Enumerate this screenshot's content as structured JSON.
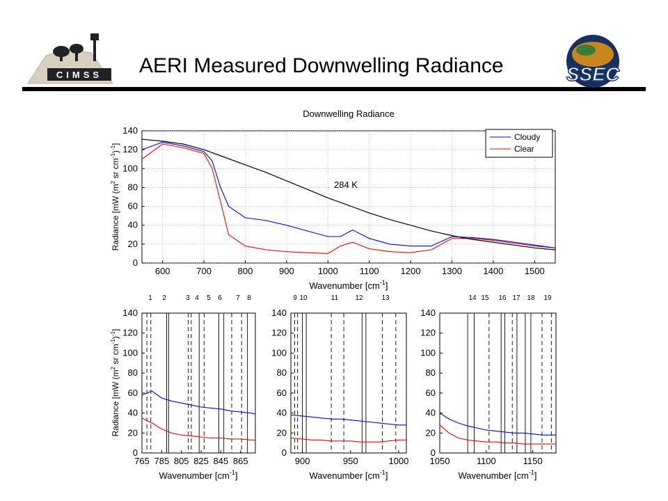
{
  "slide": {
    "title": "AERI Measured Downwelling Radiance",
    "logos": {
      "left": "CIMSS",
      "right": "SSEC"
    }
  },
  "chart_data": [
    {
      "type": "line",
      "title": "Downwelling Radiance",
      "xlabel": "Wavenumber [cm-1]",
      "ylabel": "Radiance [mW (m2 sr cm-1)-1]",
      "xlim": [
        550,
        1550
      ],
      "ylim": [
        0,
        140
      ],
      "xticks": [
        600,
        700,
        800,
        900,
        1000,
        1100,
        1200,
        1300,
        1400,
        1500
      ],
      "yticks": [
        0,
        20,
        40,
        60,
        80,
        100,
        120,
        140
      ],
      "grid": true,
      "legend_position": "top-right",
      "annotation": "284 K",
      "series": [
        {
          "name": "Cloudy",
          "color": "#0000ff",
          "x": [
            550,
            600,
            650,
            700,
            720,
            740,
            760,
            800,
            850,
            900,
            950,
            1000,
            1030,
            1060,
            1100,
            1150,
            1200,
            1250,
            1300,
            1350,
            1400,
            1450,
            1500,
            1550
          ],
          "y": [
            120,
            128,
            124,
            118,
            108,
            80,
            60,
            48,
            45,
            40,
            34,
            28,
            28,
            35,
            26,
            20,
            18,
            18,
            28,
            27,
            25,
            22,
            19,
            16
          ]
        },
        {
          "name": "Clear",
          "color": "#ff0000",
          "x": [
            550,
            600,
            650,
            700,
            720,
            740,
            760,
            800,
            850,
            900,
            950,
            1000,
            1030,
            1060,
            1100,
            1150,
            1200,
            1250,
            1300,
            1350,
            1400,
            1450,
            1500,
            1550
          ],
          "y": [
            110,
            126,
            122,
            116,
            100,
            65,
            30,
            18,
            14,
            12,
            11,
            10,
            18,
            22,
            15,
            12,
            11,
            14,
            26,
            26,
            24,
            21,
            18,
            16
          ]
        },
        {
          "name": "284 K",
          "color": "#000000",
          "x": [
            550,
            600,
            650,
            700,
            750,
            800,
            850,
            900,
            950,
            1000,
            1050,
            1100,
            1150,
            1200,
            1250,
            1300,
            1350,
            1400,
            1450,
            1500,
            1550
          ],
          "y": [
            131,
            129,
            126,
            120,
            112,
            104,
            96,
            87,
            78,
            69,
            61,
            53,
            46,
            40,
            34,
            29,
            25,
            22,
            19,
            16,
            14
          ]
        }
      ],
      "channel_labels": [
        "1",
        "2",
        "3",
        "4",
        "5",
        "6",
        "7",
        "8",
        "9",
        "10",
        "11",
        "12",
        "13",
        "14",
        "15",
        "16",
        "17",
        "18",
        "19"
      ]
    },
    {
      "type": "line",
      "xlabel": "Wavenumber [cm-1]",
      "ylabel": "Radiance [mW (m2 sr cm-1)-1]",
      "xlim": [
        765,
        880
      ],
      "ylim": [
        0,
        140
      ],
      "xticks": [
        765,
        785,
        805,
        825,
        845,
        865
      ],
      "yticks": [
        0,
        20,
        40,
        60,
        80,
        100,
        120,
        140
      ],
      "channel_lines": [
        {
          "x": 770,
          "style": "dashed"
        },
        {
          "x": 774,
          "style": "dashed"
        },
        {
          "x": 790,
          "style": "solid"
        },
        {
          "x": 792,
          "style": "solid"
        },
        {
          "x": 812,
          "style": "dashed"
        },
        {
          "x": 815,
          "style": "dashed"
        },
        {
          "x": 823,
          "style": "solid"
        },
        {
          "x": 828,
          "style": "dashed"
        },
        {
          "x": 843,
          "style": "solid"
        },
        {
          "x": 848,
          "style": "solid"
        },
        {
          "x": 856,
          "style": "dashed"
        },
        {
          "x": 866,
          "style": "dashed"
        },
        {
          "x": 872,
          "style": "solid"
        }
      ],
      "series": [
        {
          "name": "Cloudy",
          "color": "#0000ff",
          "x": [
            765,
            775,
            785,
            795,
            805,
            815,
            825,
            835,
            845,
            855,
            865,
            875,
            880
          ],
          "y": [
            58,
            62,
            55,
            52,
            50,
            48,
            46,
            45,
            44,
            42,
            41,
            40,
            39
          ]
        },
        {
          "name": "Clear",
          "color": "#ff0000",
          "x": [
            765,
            775,
            785,
            795,
            805,
            815,
            825,
            835,
            845,
            855,
            865,
            875,
            880
          ],
          "y": [
            35,
            30,
            24,
            20,
            18,
            17,
            16,
            15,
            15,
            14,
            14,
            13,
            13
          ]
        }
      ]
    },
    {
      "type": "line",
      "xlabel": "Wavenumber [cm-1]",
      "xlim": [
        888,
        1008
      ],
      "ylim": [
        0,
        140
      ],
      "xticks": [
        900,
        950,
        1000
      ],
      "yticks": [
        0,
        20,
        40,
        60,
        80,
        100,
        120,
        140
      ],
      "channel_lines": [
        {
          "x": 892,
          "style": "dashed"
        },
        {
          "x": 895,
          "style": "dashed"
        },
        {
          "x": 900,
          "style": "solid"
        },
        {
          "x": 904,
          "style": "solid"
        },
        {
          "x": 930,
          "style": "dashed"
        },
        {
          "x": 943,
          "style": "dashed"
        },
        {
          "x": 962,
          "style": "solid"
        },
        {
          "x": 966,
          "style": "solid"
        },
        {
          "x": 983,
          "style": "dashed"
        },
        {
          "x": 997,
          "style": "dashed"
        }
      ],
      "series": [
        {
          "name": "Cloudy",
          "color": "#0000ff",
          "x": [
            888,
            900,
            910,
            920,
            930,
            940,
            950,
            960,
            970,
            980,
            990,
            1000,
            1008
          ],
          "y": [
            38,
            37,
            36,
            35,
            34,
            34,
            33,
            32,
            31,
            30,
            29,
            28,
            28
          ]
        },
        {
          "name": "Clear",
          "color": "#ff0000",
          "x": [
            888,
            900,
            910,
            920,
            930,
            940,
            950,
            960,
            970,
            980,
            990,
            1000,
            1008
          ],
          "y": [
            15,
            14,
            13,
            13,
            12,
            12,
            12,
            11,
            11,
            11,
            12,
            13,
            13
          ]
        }
      ]
    },
    {
      "type": "line",
      "xlabel": "Wavenumber [cm-1]",
      "xlim": [
        1050,
        1175
      ],
      "ylim": [
        0,
        140
      ],
      "xticks": [
        1050,
        1100,
        1150
      ],
      "yticks": [
        0,
        20,
        40,
        60,
        80,
        100,
        120,
        140
      ],
      "channel_lines": [
        {
          "x": 1080,
          "style": "solid"
        },
        {
          "x": 1087,
          "style": "solid"
        },
        {
          "x": 1103,
          "style": "dashed"
        },
        {
          "x": 1116,
          "style": "solid"
        },
        {
          "x": 1120,
          "style": "solid"
        },
        {
          "x": 1128,
          "style": "dashed"
        },
        {
          "x": 1133,
          "style": "solid"
        },
        {
          "x": 1142,
          "style": "solid"
        },
        {
          "x": 1148,
          "style": "solid"
        },
        {
          "x": 1160,
          "style": "dashed"
        },
        {
          "x": 1170,
          "style": "dashed"
        }
      ],
      "series": [
        {
          "name": "Cloudy",
          "color": "#0000ff",
          "x": [
            1050,
            1060,
            1070,
            1080,
            1090,
            1100,
            1110,
            1120,
            1130,
            1140,
            1150,
            1160,
            1170,
            1175
          ],
          "y": [
            40,
            34,
            30,
            27,
            25,
            23,
            22,
            21,
            20,
            20,
            19,
            18,
            18,
            18
          ]
        },
        {
          "name": "Clear",
          "color": "#ff0000",
          "x": [
            1050,
            1060,
            1070,
            1080,
            1090,
            1100,
            1110,
            1120,
            1130,
            1140,
            1150,
            1160,
            1170,
            1175
          ],
          "y": [
            28,
            20,
            15,
            13,
            12,
            11,
            11,
            10,
            10,
            9,
            9,
            9,
            9,
            9
          ]
        }
      ]
    }
  ]
}
